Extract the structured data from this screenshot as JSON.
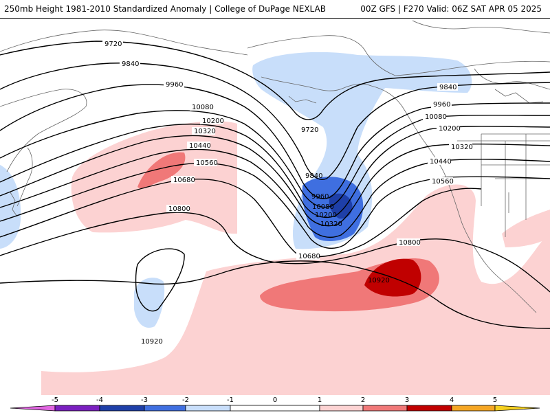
{
  "header": {
    "left": "250mb Height 1981-2010 Standardized Anomaly | College of DuPage NEXLAB",
    "right": "00Z GFS | F270 Valid: 06Z SAT APR 05 2025"
  },
  "colors": {
    "neg5": "#e066e0",
    "neg4": "#7a1fbf",
    "neg3": "#1e3fa8",
    "neg2": "#3f6fe0",
    "neg1": "#c8defa",
    "zero": "#ffffff",
    "pos1": "#fcd2d2",
    "pos2": "#f07878",
    "pos3": "#c00000",
    "pos4": "#f5a623",
    "pos5": "#f5d020",
    "contour": "#000000",
    "coast": "#666666"
  },
  "contours": [
    {
      "label": "9720"
    },
    {
      "label": "9840"
    },
    {
      "label": "9960"
    },
    {
      "label": "10080"
    },
    {
      "label": "10200"
    },
    {
      "label": "10320"
    },
    {
      "label": "10440"
    },
    {
      "label": "10560"
    },
    {
      "label": "10680"
    },
    {
      "label": "10800"
    },
    {
      "label": "10920"
    }
  ],
  "contour_labels": {
    "a9720": "9720",
    "a9840": "9840",
    "a9960": "9960",
    "a10080": "10080",
    "a10200": "10200",
    "a10320": "10320",
    "a10440": "10440",
    "a10560": "10560",
    "a10680": "10680",
    "a10800": "10800",
    "t9720": "9720",
    "t9840": "9840",
    "t9960": "9960",
    "t10080": "10080",
    "t10200": "10200",
    "t10320": "10320",
    "r9840": "9840",
    "r9960": "9960",
    "r10080": "10080",
    "r10200": "10200",
    "r10320": "10320",
    "r10440": "10440",
    "r10560": "10560",
    "r10800": "10800",
    "r10920": "10920",
    "b10680": "10680",
    "b10920": "10920"
  },
  "colorbar": {
    "ticks": [
      "-5",
      "-4",
      "-3",
      "-2",
      "-1",
      "0",
      "1",
      "2",
      "3",
      "4",
      "5"
    ]
  }
}
